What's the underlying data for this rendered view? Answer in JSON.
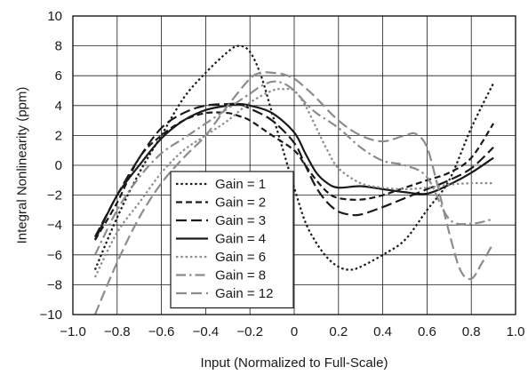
{
  "chart_data": {
    "type": "line",
    "title": "",
    "xlabel": "Input (Normalized to Full-Scale)",
    "ylabel": "Integral Nonlinearity (ppm)",
    "xlim": [
      -1.0,
      1.0
    ],
    "ylim": [
      -10,
      10
    ],
    "x_ticks": [
      -1.0,
      -0.8,
      -0.6,
      -0.4,
      -0.2,
      0,
      0.2,
      0.4,
      0.6,
      0.8,
      1.0
    ],
    "x_tick_labels": [
      "−1.0",
      "−0.8",
      "−0.6",
      "−0.4",
      "−0.2",
      "0",
      "0.2",
      "0.4",
      "0.6",
      "0.8",
      "1.0"
    ],
    "y_ticks": [
      -10,
      -8,
      -6,
      -4,
      -2,
      0,
      2,
      4,
      6,
      8,
      10
    ],
    "y_tick_labels": [
      "−10",
      "−8",
      "−6",
      "−4",
      "−2",
      "0",
      "2",
      "4",
      "6",
      "8",
      "10"
    ],
    "grid": true,
    "legend_position": "bottom-center",
    "series": [
      {
        "name": "Gain = 1",
        "color": "#1a1a1a",
        "dash": "dot",
        "x": [
          -0.9,
          -0.8,
          -0.7,
          -0.6,
          -0.5,
          -0.4,
          -0.3,
          -0.25,
          -0.2,
          -0.15,
          -0.1,
          -0.05,
          0,
          0.05,
          0.1,
          0.15,
          0.2,
          0.25,
          0.3,
          0.4,
          0.5,
          0.6,
          0.7,
          0.8,
          0.9
        ],
        "y": [
          -7.0,
          -3.5,
          -0.5,
          2.0,
          4.5,
          6.2,
          7.6,
          8.0,
          7.6,
          6.0,
          3.5,
          1.0,
          -1.5,
          -3.8,
          -5.2,
          -6.2,
          -6.8,
          -7.0,
          -6.8,
          -6.0,
          -5.0,
          -3.0,
          -1.0,
          2.5,
          5.5
        ]
      },
      {
        "name": "Gain = 2",
        "color": "#1a1a1a",
        "dash": "shortdash",
        "x": [
          -0.9,
          -0.8,
          -0.7,
          -0.6,
          -0.5,
          -0.4,
          -0.3,
          -0.25,
          -0.2,
          -0.1,
          0,
          0.05,
          0.1,
          0.15,
          0.2,
          0.3,
          0.4,
          0.5,
          0.6,
          0.7,
          0.8,
          0.9
        ],
        "y": [
          -5.0,
          -2.5,
          0.5,
          2.0,
          3.0,
          3.5,
          3.5,
          3.3,
          3.0,
          2.0,
          1.0,
          0.0,
          -1.0,
          -1.8,
          -2.2,
          -2.3,
          -2.0,
          -1.5,
          -1.0,
          -0.5,
          0.5,
          2.8
        ]
      },
      {
        "name": "Gain = 3",
        "color": "#1a1a1a",
        "dash": "longdash",
        "x": [
          -0.9,
          -0.8,
          -0.7,
          -0.6,
          -0.5,
          -0.4,
          -0.3,
          -0.25,
          -0.2,
          -0.1,
          0,
          0.05,
          0.1,
          0.15,
          0.2,
          0.25,
          0.3,
          0.4,
          0.5,
          0.6,
          0.7,
          0.8,
          0.9
        ],
        "y": [
          -4.8,
          -2.0,
          0.5,
          2.5,
          3.5,
          4.0,
          4.1,
          4.1,
          3.8,
          3.0,
          1.5,
          0.0,
          -1.5,
          -2.5,
          -3.1,
          -3.3,
          -3.3,
          -2.8,
          -2.2,
          -1.6,
          -1.0,
          -0.2,
          1.2
        ]
      },
      {
        "name": "Gain = 4",
        "color": "#1a1a1a",
        "dash": "solid",
        "x": [
          -0.9,
          -0.8,
          -0.7,
          -0.6,
          -0.5,
          -0.4,
          -0.3,
          -0.25,
          -0.2,
          -0.1,
          0,
          0.05,
          0.1,
          0.15,
          0.2,
          0.3,
          0.4,
          0.5,
          0.6,
          0.7,
          0.8,
          0.9
        ],
        "y": [
          -5.0,
          -2.0,
          0.0,
          1.8,
          3.0,
          3.7,
          4.0,
          4.1,
          4.0,
          3.5,
          2.2,
          0.8,
          -0.5,
          -1.2,
          -1.5,
          -1.4,
          -1.6,
          -1.8,
          -1.9,
          -1.3,
          -0.5,
          0.5
        ]
      },
      {
        "name": "Gain = 6",
        "color": "#8c8c8c",
        "dash": "dot",
        "x": [
          -0.9,
          -0.8,
          -0.7,
          -0.6,
          -0.5,
          -0.4,
          -0.3,
          -0.2,
          -0.1,
          -0.05,
          0,
          0.05,
          0.1,
          0.15,
          0.2,
          0.3,
          0.4,
          0.5,
          0.6,
          0.7,
          0.8,
          0.9
        ],
        "y": [
          -7.5,
          -4.5,
          -2.5,
          -0.5,
          1.0,
          2.0,
          3.0,
          4.2,
          5.0,
          5.1,
          5.0,
          4.0,
          2.5,
          1.0,
          -0.2,
          -1.2,
          -1.5,
          -1.6,
          -1.5,
          -1.3,
          -1.2,
          -1.2
        ]
      },
      {
        "name": "Gain = 8",
        "color": "#8c8c8c",
        "dash": "dashdot",
        "x": [
          -0.9,
          -0.8,
          -0.7,
          -0.6,
          -0.5,
          -0.4,
          -0.3,
          -0.2,
          -0.15,
          -0.1,
          -0.05,
          0,
          0.05,
          0.1,
          0.2,
          0.3,
          0.4,
          0.5,
          0.6,
          0.7,
          0.8,
          0.9
        ],
        "y": [
          -6.0,
          -3.0,
          -0.8,
          0.8,
          1.8,
          2.8,
          3.8,
          4.8,
          5.3,
          5.6,
          5.5,
          5.0,
          4.2,
          3.5,
          2.5,
          1.2,
          0.3,
          0.0,
          -0.8,
          -3.6,
          -3.9,
          -3.6
        ]
      },
      {
        "name": "Gain = 12",
        "color": "#8c8c8c",
        "dash": "longdash",
        "x": [
          -0.9,
          -0.8,
          -0.7,
          -0.6,
          -0.5,
          -0.4,
          -0.3,
          -0.2,
          -0.15,
          -0.1,
          -0.05,
          0,
          0.05,
          0.1,
          0.2,
          0.3,
          0.4,
          0.5,
          0.55,
          0.6,
          0.65,
          0.7,
          0.75,
          0.8,
          0.85,
          0.9
        ],
        "y": [
          -10.0,
          -6.5,
          -3.5,
          -1.2,
          0.5,
          2.0,
          4.0,
          5.8,
          6.2,
          6.2,
          6.1,
          5.8,
          5.2,
          4.5,
          3.0,
          2.0,
          1.6,
          2.0,
          2.1,
          1.2,
          -1.5,
          -4.5,
          -7.0,
          -7.6,
          -6.5,
          -5.2
        ]
      }
    ]
  }
}
